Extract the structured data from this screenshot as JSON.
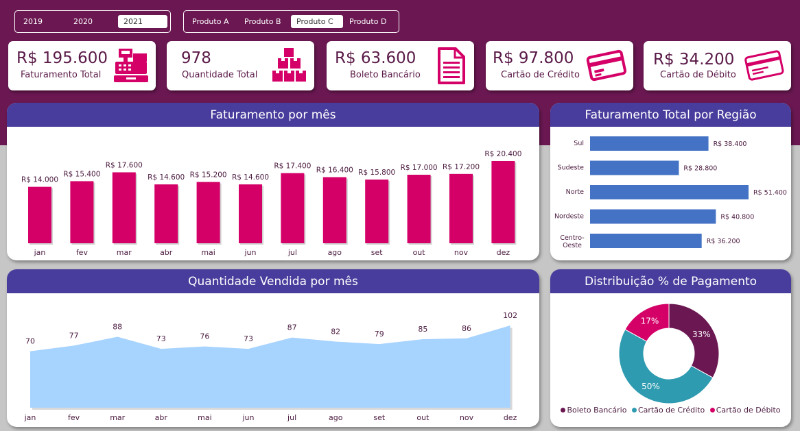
{
  "colors": {
    "band": "#6b1852",
    "header": "#483d9c",
    "magenta": "#d40067",
    "blue_bar": "#4472c4",
    "area": "#a7d3ff",
    "donut_boleto": "#6b1852",
    "donut_credito": "#2e9bb0",
    "donut_debito": "#d40067"
  },
  "filters": {
    "years": [
      {
        "label": "2019",
        "selected": false
      },
      {
        "label": "2020",
        "selected": false
      },
      {
        "label": "2021",
        "selected": true
      }
    ],
    "products": [
      {
        "label": "Produto A",
        "selected": false
      },
      {
        "label": "Produto B",
        "selected": false
      },
      {
        "label": "Produto C",
        "selected": true
      },
      {
        "label": "Produto D",
        "selected": false
      }
    ]
  },
  "kpis": [
    {
      "value": "R$ 195.600",
      "label": "Faturamento Total",
      "icon": "cash-register-icon"
    },
    {
      "value": "978",
      "label": "Quantidade Total",
      "icon": "boxes-icon"
    },
    {
      "value": "R$ 63.600",
      "label": "Boleto Bancário",
      "icon": "document-icon"
    },
    {
      "value": "R$ 97.800",
      "label": "Cartão de Crédito",
      "icon": "credit-card-icon"
    },
    {
      "value": "R$ 34.200",
      "label": "Cartão de Débito",
      "icon": "debit-card-icon"
    }
  ],
  "panels": {
    "monthly_revenue": "Faturamento por mês",
    "region_revenue": "Faturamento Total por Região",
    "monthly_quantity": "Quantidade Vendida por mês",
    "payment_distribution": "Distribuição % de Pagamento"
  },
  "chart_data": [
    {
      "id": "monthly_revenue",
      "type": "bar",
      "title": "Faturamento por mês",
      "categories": [
        "jan",
        "fev",
        "mar",
        "abr",
        "mai",
        "jun",
        "jul",
        "ago",
        "set",
        "out",
        "nov",
        "dez"
      ],
      "values": [
        14000,
        15400,
        17600,
        14600,
        15200,
        14600,
        17400,
        16400,
        15800,
        17000,
        17200,
        20400
      ],
      "data_labels": [
        "R$ 14.000",
        "R$ 15.400",
        "R$ 17.600",
        "R$ 14.600",
        "R$ 15.200",
        "R$ 14.600",
        "R$ 17.400",
        "R$ 16.400",
        "R$ 15.800",
        "R$ 17.000",
        "R$ 17.200",
        "R$ 20.400"
      ],
      "ylim": [
        0,
        20400
      ]
    },
    {
      "id": "region_revenue",
      "type": "bar",
      "orientation": "horizontal",
      "title": "Faturamento Total por Região",
      "categories": [
        "Sul",
        "Sudeste",
        "Norte",
        "Nordeste",
        "Centro-Oeste"
      ],
      "values": [
        38400,
        28800,
        51400,
        40800,
        36200
      ],
      "data_labels": [
        "R$ 38.400",
        "R$ 28.800",
        "R$ 51.400",
        "R$ 40.800",
        "R$ 36.200"
      ],
      "xlim": [
        0,
        51400
      ]
    },
    {
      "id": "monthly_quantity",
      "type": "area",
      "title": "Quantidade Vendida por mês",
      "categories": [
        "jan",
        "fev",
        "mar",
        "abr",
        "mai",
        "jun",
        "jul",
        "ago",
        "set",
        "out",
        "nov",
        "dez"
      ],
      "values": [
        70,
        77,
        88,
        73,
        76,
        73,
        87,
        82,
        79,
        85,
        86,
        102
      ],
      "ylim": [
        0,
        102
      ]
    },
    {
      "id": "payment_distribution",
      "type": "pie",
      "title": "Distribuição % de Pagamento",
      "labels": [
        "Boleto Bancário",
        "Cartão de Crédito",
        "Cartão de Débito"
      ],
      "values": [
        33,
        50,
        17
      ],
      "data_labels": [
        "33%",
        "50%",
        "17%"
      ]
    }
  ]
}
